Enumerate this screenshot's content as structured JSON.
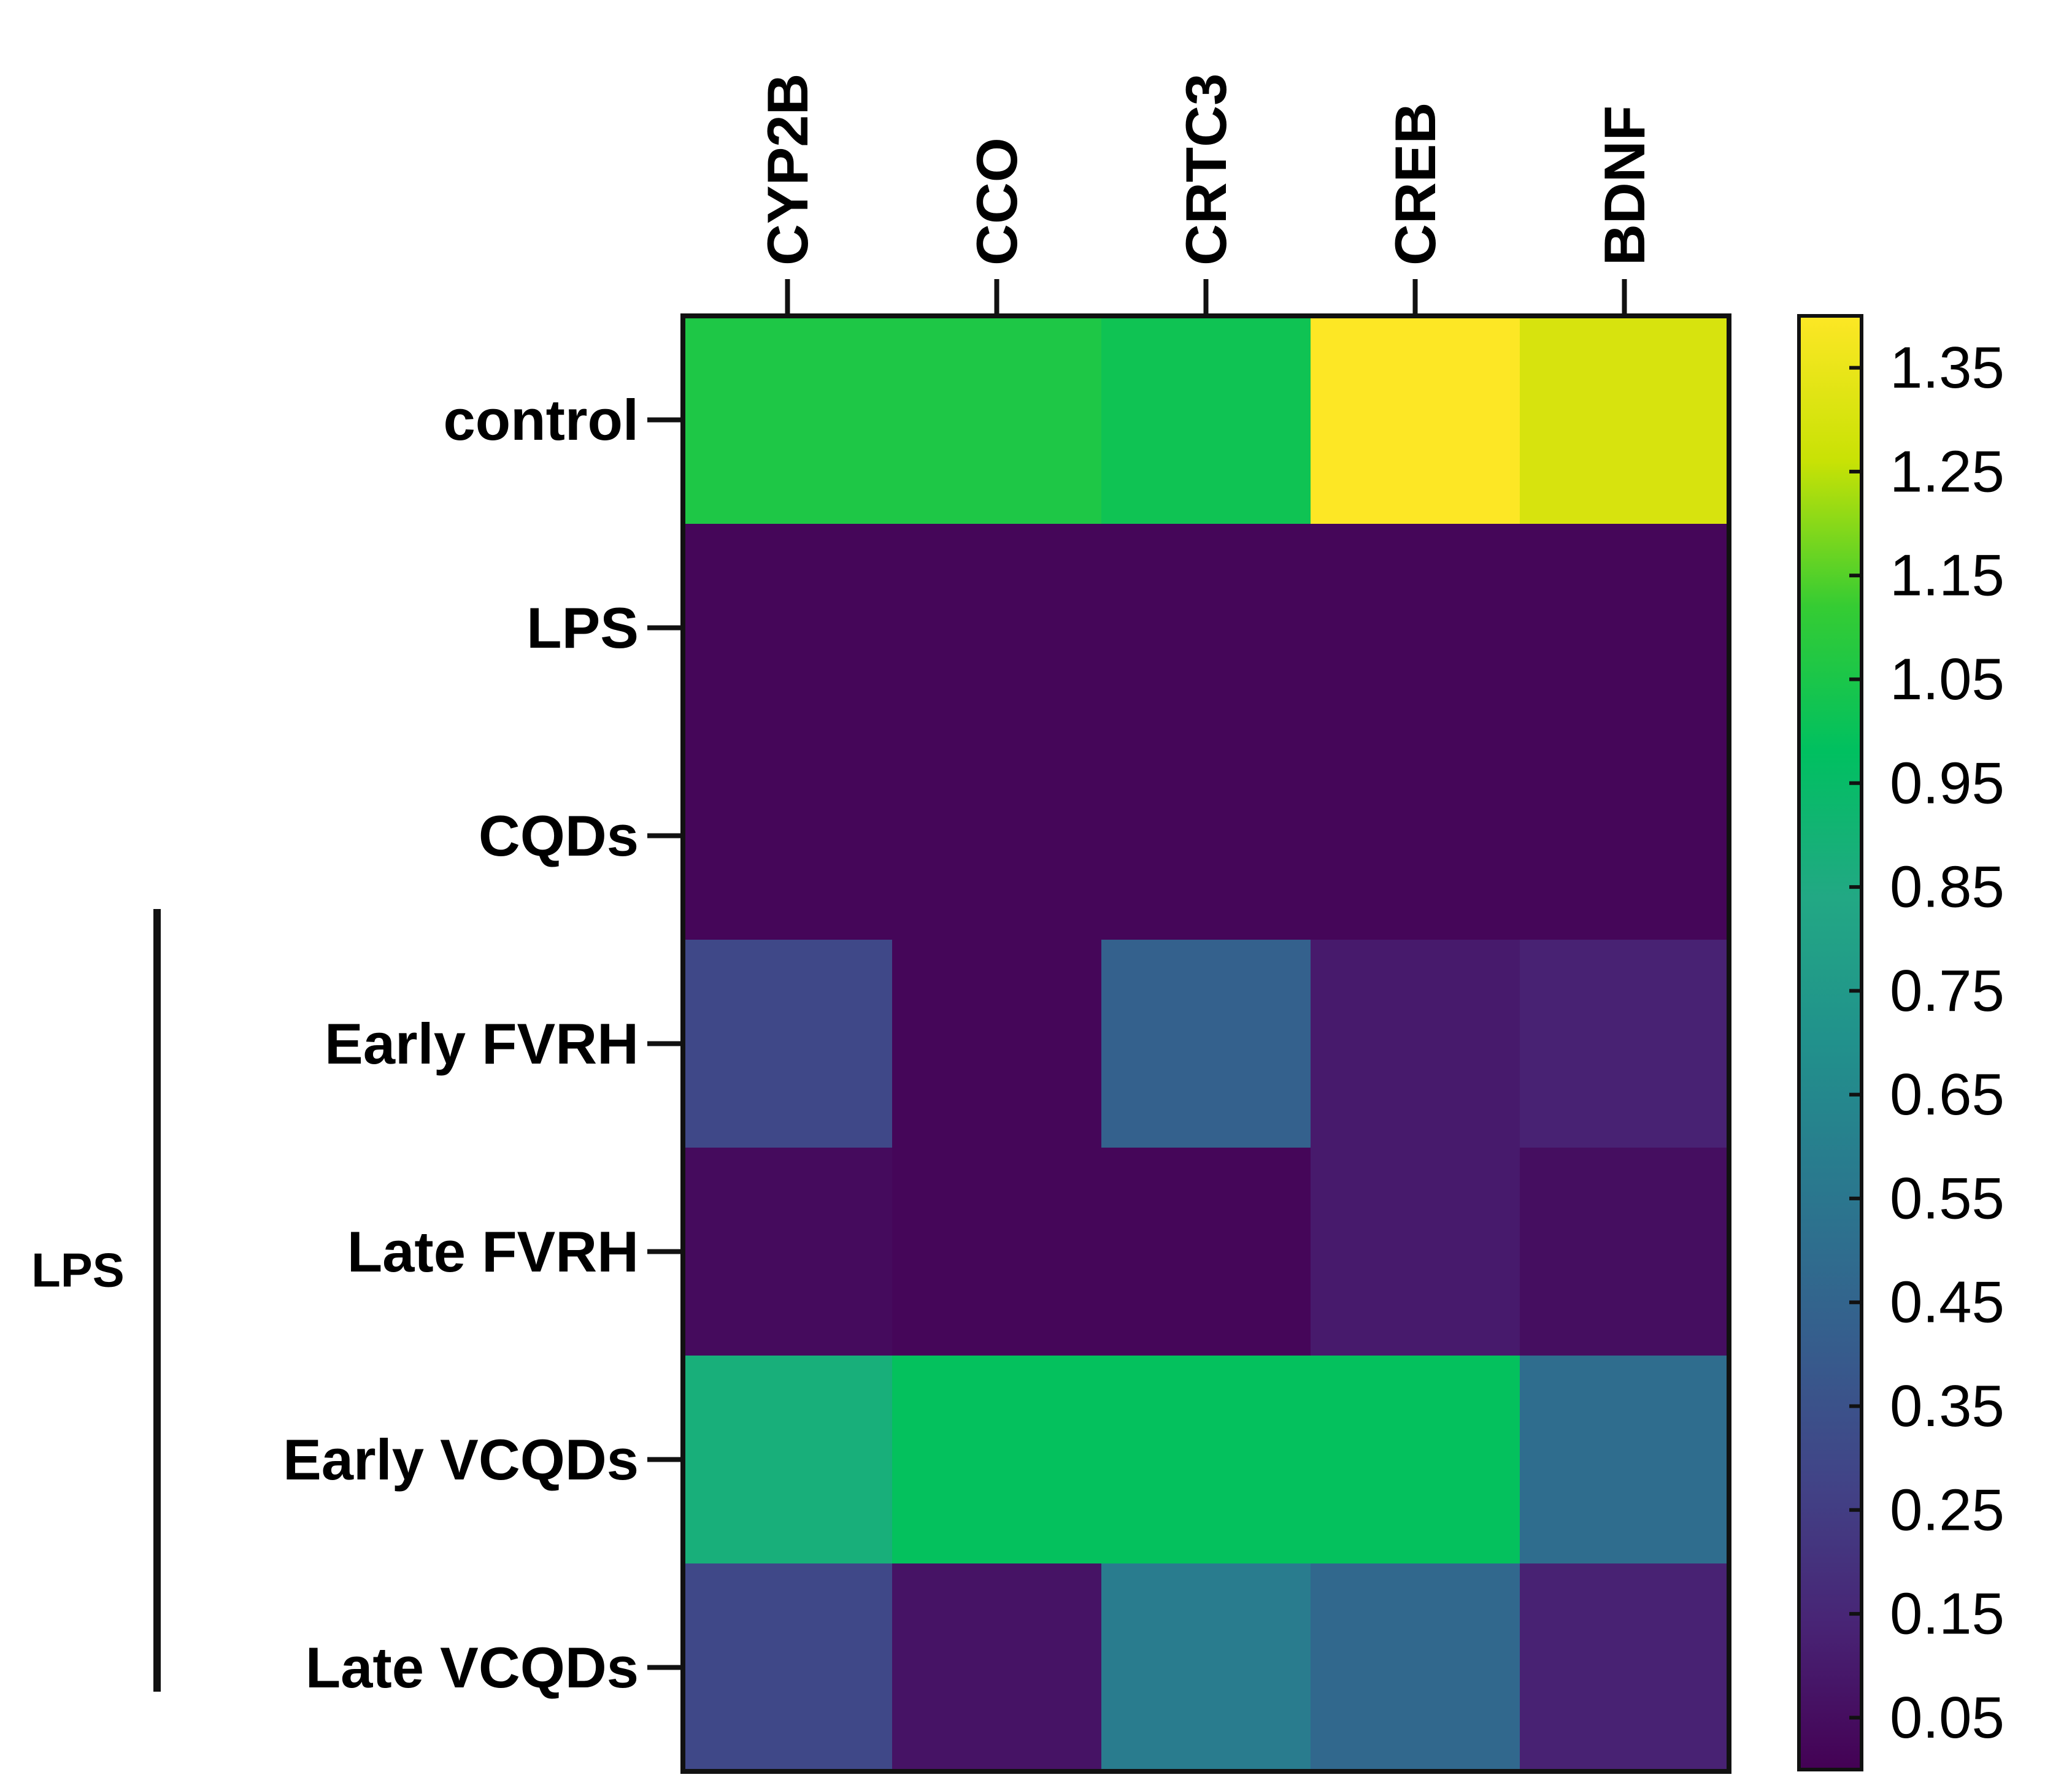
{
  "chart_data": {
    "type": "heatmap",
    "title": "",
    "columns": [
      "CYP2B",
      "CCO",
      "CRTC3",
      "CREB",
      "BDNF"
    ],
    "rows": [
      "control",
      "LPS",
      "CQDs",
      "Early FVRH",
      "Late FVRH",
      "Early VCQDs",
      "Late VCQDs"
    ],
    "values": [
      [
        1.06,
        1.06,
        1.02,
        1.4,
        1.3
      ],
      [
        0.02,
        0.02,
        0.02,
        0.02,
        0.02
      ],
      [
        0.02,
        0.02,
        0.02,
        0.02,
        0.02
      ],
      [
        0.3,
        0.02,
        0.43,
        0.1,
        0.13
      ],
      [
        0.04,
        0.02,
        0.02,
        0.1,
        0.05
      ],
      [
        0.88,
        0.99,
        0.99,
        0.99,
        0.5
      ],
      [
        0.3,
        0.07,
        0.58,
        0.47,
        0.13
      ]
    ],
    "group_label": "LPS",
    "group_rows": [
      "Early FVRH",
      "Late FVRH",
      "Early VCQDs",
      "Late VCQDs"
    ],
    "colorbar": {
      "colormap": "viridis",
      "vmin": 0.0,
      "vmax": 1.4,
      "ticks": [
        0.05,
        0.15,
        0.25,
        0.35,
        0.45,
        0.55,
        0.65,
        0.75,
        0.85,
        0.95,
        1.05,
        1.15,
        1.25,
        1.35
      ],
      "tick_labels": [
        "0.05",
        "0.15",
        "0.25",
        "0.35",
        "0.45",
        "0.55",
        "0.65",
        "0.75",
        "0.85",
        "0.95",
        "1.05",
        "1.15",
        "1.25",
        "1.35"
      ]
    }
  }
}
